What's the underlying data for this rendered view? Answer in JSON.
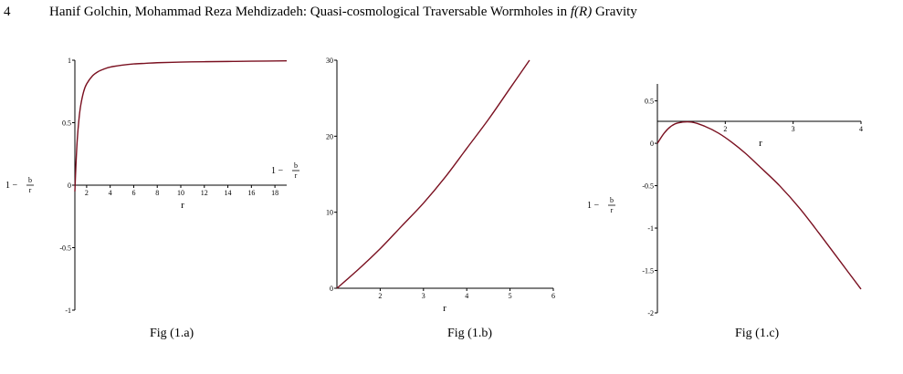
{
  "header": {
    "page_number": "4",
    "running_title_prefix": "Hanif Golchin, Mohammad Reza Mehdizadeh: Quasi-cosmological Traversable Wormholes in ",
    "running_title_math": "f(R)",
    "running_title_suffix": " Gravity"
  },
  "figures": [
    {
      "caption": "Fig (1.a)"
    },
    {
      "caption": "Fig (1.b)"
    },
    {
      "caption": "Fig (1.c)"
    }
  ],
  "chart_data": [
    {
      "type": "line",
      "title": "",
      "xlabel": "r",
      "ylabel": "1 − b/r",
      "ylabel_prefix": "1 −",
      "ylabel_num": "b",
      "ylabel_den": "r",
      "xlim": [
        1,
        19
      ],
      "ylim": [
        -1,
        1
      ],
      "x_ticks": [
        "2",
        "4",
        "6",
        "8",
        "10",
        "12",
        "14",
        "16",
        "18"
      ],
      "y_ticks": [
        "1",
        "0.5",
        "0",
        "-0.5",
        "-1"
      ],
      "series": [
        {
          "color": "#7a1020",
          "x": [
            1.0,
            1.1,
            1.2,
            1.35,
            1.5,
            1.75,
            2.0,
            2.5,
            3.0,
            3.5,
            4.0,
            5.0,
            6.0,
            7.0,
            8.0,
            10.0,
            12.0,
            14.0,
            16.0,
            19.0
          ],
          "y": [
            -0.05,
            0.18,
            0.36,
            0.53,
            0.64,
            0.75,
            0.81,
            0.875,
            0.91,
            0.93,
            0.945,
            0.96,
            0.97,
            0.975,
            0.98,
            0.985,
            0.988,
            0.99,
            0.992,
            0.995
          ]
        }
      ]
    },
    {
      "type": "line",
      "title": "",
      "xlabel": "r",
      "ylabel": "1 − b/r",
      "ylabel_prefix": "1 −",
      "ylabel_num": "b",
      "ylabel_den": "r",
      "xlim": [
        1,
        6
      ],
      "ylim": [
        0,
        30
      ],
      "x_ticks": [
        "2",
        "3",
        "4",
        "5",
        "6"
      ],
      "y_ticks": [
        "30",
        "20",
        "10",
        "0"
      ],
      "series": [
        {
          "color": "#7a1020",
          "x": [
            1.0,
            1.5,
            2.0,
            2.5,
            3.0,
            3.5,
            4.0,
            4.5,
            5.0,
            5.45
          ],
          "y": [
            0.0,
            2.5,
            5.2,
            8.2,
            11.2,
            14.6,
            18.4,
            22.2,
            26.3,
            30.0
          ]
        }
      ]
    },
    {
      "type": "line",
      "title": "",
      "xlabel": "r",
      "ylabel": "1 − b/r",
      "ylabel_prefix": "1 −",
      "ylabel_num": "b",
      "ylabel_den": "r",
      "xlim": [
        1,
        4
      ],
      "ylim": [
        -2,
        0.7
      ],
      "x_ticks": [
        "2",
        "3",
        "4"
      ],
      "y_ticks": [
        "0.5",
        "0",
        "-0.5",
        "-1",
        "-1.5",
        "-2"
      ],
      "series": [
        {
          "color": "#7a1020",
          "x": [
            1.0,
            1.1,
            1.2,
            1.3,
            1.5,
            1.7,
            1.9,
            2.1,
            2.3,
            2.5,
            2.8,
            3.1,
            3.4,
            3.7,
            4.0
          ],
          "y": [
            0.0,
            0.12,
            0.2,
            0.24,
            0.25,
            0.2,
            0.12,
            0.01,
            -0.12,
            -0.27,
            -0.5,
            -0.77,
            -1.08,
            -1.4,
            -1.72
          ]
        }
      ]
    }
  ]
}
